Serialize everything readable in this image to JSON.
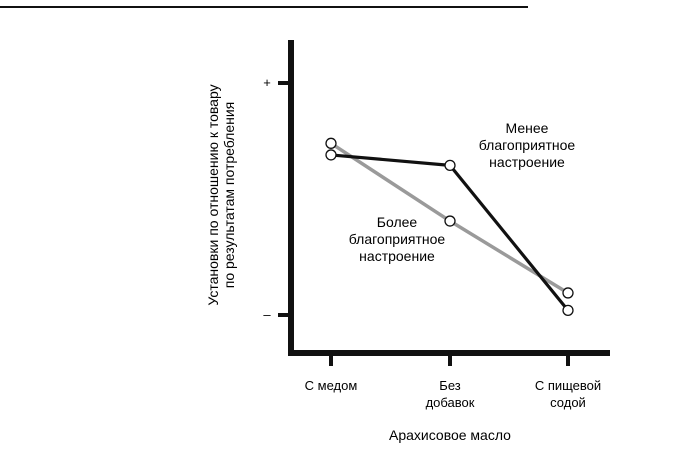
{
  "chart_data": {
    "type": "line",
    "title": "",
    "xlabel": "Арахисовое масло",
    "ylabel_lines": [
      "Установки по отношению к товару",
      "по результатам потребления"
    ],
    "y_tick_labels": {
      "top": "+",
      "bottom": "–"
    },
    "categories": [
      [
        "С медом"
      ],
      [
        "Без",
        "добавок"
      ],
      [
        "С пищевой",
        "содой"
      ]
    ],
    "ylim": [
      0,
      1
    ],
    "y_ticks": [
      1,
      0
    ],
    "series": [
      {
        "name_lines": [
          "Менее",
          "благоприятное",
          "настроение"
        ],
        "values": [
          0.69,
          0.645,
          0.02
        ],
        "color": "#111111"
      },
      {
        "name_lines": [
          "Более",
          "благоприятное",
          "настроение"
        ],
        "values": [
          0.74,
          0.405,
          0.095
        ],
        "color": "#9a9a9a"
      }
    ]
  }
}
